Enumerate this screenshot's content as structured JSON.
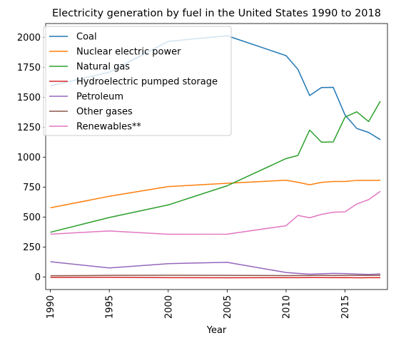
{
  "chart_data": {
    "type": "line",
    "title": "Electricity generation by fuel in the United States 1990 to 2018",
    "xlabel": "Year",
    "ylabel": "",
    "xlim": [
      1989.6,
      2018.6
    ],
    "ylim": [
      -105,
      2115
    ],
    "xticks": [
      1990,
      1995,
      2000,
      2005,
      2010,
      2015
    ],
    "yticks": [
      0,
      250,
      500,
      750,
      1000,
      1250,
      1500,
      1750,
      2000
    ],
    "grid": false,
    "legend_position": "top-left",
    "x": [
      1990,
      1995,
      2000,
      2005,
      2010,
      2011,
      2012,
      2013,
      2014,
      2015,
      2016,
      2017,
      2018
    ],
    "series": [
      {
        "name": "Coal",
        "color": "#1f77b4",
        "values": [
          1594,
          1709,
          1966,
          2013,
          1847,
          1733,
          1514,
          1581,
          1582,
          1352,
          1239,
          1206,
          1146
        ]
      },
      {
        "name": "Nuclear electric power",
        "color": "#ff7f0e",
        "values": [
          577,
          673,
          754,
          782,
          807,
          790,
          769,
          789,
          797,
          797,
          806,
          805,
          807
        ]
      },
      {
        "name": "Natural gas",
        "color": "#2ca02c",
        "values": [
          373,
          496,
          601,
          761,
          988,
          1014,
          1226,
          1125,
          1127,
          1334,
          1378,
          1297,
          1468
        ]
      },
      {
        "name": "Hydroelectric pumped storage",
        "color": "#d62728",
        "values": [
          -4,
          -3,
          -6,
          -7,
          -6,
          -6,
          -5,
          -5,
          -6,
          -5,
          -7,
          -6,
          -6
        ]
      },
      {
        "name": "Petroleum",
        "color": "#9467bd",
        "values": [
          127,
          75,
          111,
          122,
          37,
          30,
          23,
          27,
          30,
          28,
          24,
          21,
          25
        ]
      },
      {
        "name": "Other gases",
        "color": "#8c564b",
        "values": [
          10,
          13,
          14,
          13,
          11,
          12,
          12,
          13,
          12,
          13,
          13,
          13,
          13
        ]
      },
      {
        "name": "Renewables**",
        "color": "#e377c2",
        "values": [
          357,
          384,
          356,
          357,
          428,
          513,
          494,
          522,
          540,
          544,
          609,
          645,
          715
        ]
      }
    ]
  }
}
